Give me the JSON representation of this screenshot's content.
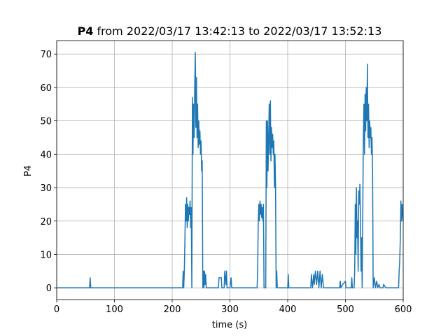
{
  "chart_data": {
    "type": "line",
    "title": {
      "bold": "P4",
      "rest": "from 2022/03/17 13:42:13 to 2022/03/17 13:52:13"
    },
    "xlabel": "time (s)",
    "ylabel": "P4",
    "xlim": [
      0,
      600
    ],
    "ylim": [
      -3.53,
      74.03
    ],
    "xticks": [
      0,
      100,
      200,
      300,
      400,
      500,
      600
    ],
    "yticks": [
      0,
      10,
      20,
      30,
      40,
      50,
      60,
      70
    ],
    "grid": true,
    "series": [
      {
        "name": "P4",
        "color": "#1f77b4",
        "x": [
          0,
          57,
          58,
          59,
          218,
          219,
          220,
          221,
          222,
          223,
          224,
          225,
          226,
          227,
          228,
          229,
          230,
          231,
          232,
          233,
          234,
          235,
          236,
          237,
          238,
          239,
          240,
          241,
          242,
          243,
          244,
          245,
          246,
          247,
          248,
          249,
          250,
          251,
          252,
          253,
          254,
          255,
          256,
          257,
          258,
          259,
          280,
          281,
          285,
          286,
          290,
          291,
          293,
          294,
          295,
          300,
          302,
          303,
          347,
          348,
          349,
          350,
          351,
          352,
          353,
          354,
          355,
          356,
          357,
          358,
          359,
          362,
          363,
          364,
          365,
          366,
          367,
          368,
          369,
          370,
          371,
          372,
          373,
          374,
          375,
          376,
          377,
          378,
          379,
          380,
          381,
          382,
          400,
          401,
          402,
          440,
          441,
          443,
          445,
          446,
          448,
          450,
          452,
          454,
          456,
          458,
          460,
          462,
          490,
          491,
          492,
          495,
          500,
          501,
          510,
          511,
          512,
          515,
          516,
          517,
          518,
          519,
          520,
          521,
          522,
          523,
          524,
          525,
          526,
          527,
          528,
          529,
          531,
          532,
          533,
          534,
          535,
          536,
          537,
          538,
          539,
          540,
          541,
          542,
          543,
          544,
          545,
          546,
          547,
          548,
          550,
          552,
          554,
          556,
          558,
          560,
          565,
          566,
          570,
          592,
          593,
          594,
          595,
          596,
          597,
          598,
          599,
          600
        ],
        "values": [
          0,
          0,
          3,
          0,
          0,
          5,
          0,
          5,
          14,
          25,
          20,
          27,
          18,
          25,
          20,
          24,
          22,
          26,
          18,
          24,
          0,
          57,
          40,
          55,
          45,
          60,
          70.5,
          48,
          63,
          45,
          55,
          42,
          50,
          43,
          47,
          40,
          44,
          35,
          38,
          0,
          5,
          0,
          5,
          1,
          4,
          0,
          0,
          3,
          3,
          0,
          0,
          5,
          1,
          5,
          0,
          0,
          3,
          0,
          0,
          5,
          20,
          25,
          20,
          26,
          22,
          25,
          21,
          24,
          20,
          25,
          0,
          0,
          50,
          30,
          50,
          35,
          45,
          55,
          40,
          56,
          38,
          48,
          42,
          46,
          40,
          44,
          30,
          40,
          30,
          0,
          5,
          0,
          0,
          4,
          0,
          0,
          4,
          0,
          4,
          1,
          5,
          1,
          5,
          0,
          5,
          0,
          4,
          0,
          0,
          2,
          0,
          1,
          2,
          0,
          0,
          3,
          0,
          0,
          5,
          25,
          10,
          30,
          15,
          20,
          5,
          29,
          25,
          31,
          20,
          5,
          15,
          0,
          45,
          55,
          40,
          58,
          47,
          60,
          50,
          67,
          45,
          55,
          42,
          50,
          45,
          48,
          40,
          45,
          35,
          0,
          3,
          0,
          2,
          0,
          1,
          0,
          0,
          1,
          0,
          0,
          5,
          8,
          15,
          26,
          20,
          25,
          22,
          20
        ]
      }
    ]
  }
}
